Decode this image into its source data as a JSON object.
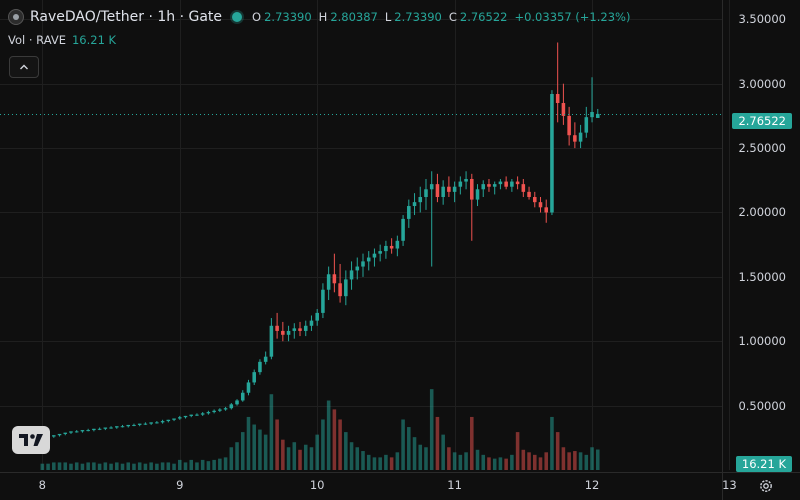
{
  "header": {
    "title": "RaveDAO/Tether · 1h · Gate",
    "ohlc": {
      "o_label": "O",
      "o": "2.73390",
      "h_label": "H",
      "h": "2.80387",
      "l_label": "L",
      "l": "2.73390",
      "c_label": "C",
      "c": "2.76522",
      "change": "+0.03357 (+1.23%)"
    },
    "status_color": "#26a69a"
  },
  "volume_indicator": {
    "label": "Vol · RAVE",
    "value": "16.21 K"
  },
  "price_axis": {
    "labels": [
      "3.50000",
      "3.00000",
      "2.50000",
      "2.00000",
      "1.50000",
      "1.00000",
      "0.50000"
    ]
  },
  "current_price_tag": "2.76522",
  "current_volume_tag": "16.21 K",
  "time_axis": {
    "labels": [
      "8",
      "9",
      "10",
      "11",
      "12",
      "13"
    ]
  },
  "colors": {
    "up": "#26a69a",
    "down": "#ef5350",
    "background": "#0f0f0f",
    "grid": "#1f1f1f"
  },
  "icons": {
    "collapse": "chevron-up-icon",
    "brand": "tradingview-logo",
    "settings": "gear-icon"
  },
  "chart_data": {
    "type": "candlestick",
    "title": "RaveDAO/Tether · 1h · Gate",
    "ylim": [
      0,
      3.65
    ],
    "volume_ylim": [
      0,
      95000
    ],
    "x_range_hours": [
      -6,
      118
    ],
    "x_ticks": [
      "8",
      "9",
      "10",
      "11",
      "12",
      "13"
    ],
    "y_ticks": [
      0.5,
      1.0,
      1.5,
      2.0,
      2.5,
      3.0,
      3.5
    ],
    "grid": true,
    "last_price": 2.76522,
    "last_volume": 16210,
    "candles": [
      [
        0.25,
        0.26,
        0.24,
        0.25,
        5000
      ],
      [
        0.25,
        0.26,
        0.24,
        0.26,
        5000
      ],
      [
        0.26,
        0.27,
        0.25,
        0.27,
        6000
      ],
      [
        0.27,
        0.28,
        0.26,
        0.28,
        6000
      ],
      [
        0.28,
        0.29,
        0.27,
        0.29,
        6000
      ],
      [
        0.29,
        0.3,
        0.28,
        0.3,
        5000
      ],
      [
        0.3,
        0.31,
        0.29,
        0.3,
        6000
      ],
      [
        0.3,
        0.31,
        0.29,
        0.31,
        5000
      ],
      [
        0.31,
        0.32,
        0.3,
        0.31,
        6000
      ],
      [
        0.31,
        0.32,
        0.3,
        0.32,
        6000
      ],
      [
        0.32,
        0.33,
        0.31,
        0.32,
        5000
      ],
      [
        0.32,
        0.33,
        0.31,
        0.33,
        6000
      ],
      [
        0.33,
        0.34,
        0.32,
        0.33,
        5000
      ],
      [
        0.33,
        0.34,
        0.32,
        0.34,
        6000
      ],
      [
        0.34,
        0.35,
        0.33,
        0.34,
        5000
      ],
      [
        0.34,
        0.35,
        0.33,
        0.35,
        6000
      ],
      [
        0.35,
        0.36,
        0.34,
        0.35,
        5000
      ],
      [
        0.35,
        0.36,
        0.34,
        0.36,
        6000
      ],
      [
        0.36,
        0.37,
        0.35,
        0.36,
        5000
      ],
      [
        0.36,
        0.37,
        0.35,
        0.37,
        6000
      ],
      [
        0.37,
        0.38,
        0.36,
        0.37,
        5000
      ],
      [
        0.37,
        0.39,
        0.36,
        0.38,
        6000
      ],
      [
        0.38,
        0.39,
        0.37,
        0.39,
        6000
      ],
      [
        0.39,
        0.4,
        0.38,
        0.4,
        5000
      ],
      [
        0.4,
        0.42,
        0.39,
        0.41,
        8000
      ],
      [
        0.41,
        0.42,
        0.4,
        0.42,
        6000
      ],
      [
        0.42,
        0.43,
        0.41,
        0.43,
        8000
      ],
      [
        0.43,
        0.44,
        0.42,
        0.43,
        6000
      ],
      [
        0.43,
        0.45,
        0.42,
        0.44,
        8000
      ],
      [
        0.44,
        0.46,
        0.43,
        0.45,
        7000
      ],
      [
        0.45,
        0.47,
        0.44,
        0.46,
        8000
      ],
      [
        0.46,
        0.48,
        0.45,
        0.47,
        9000
      ],
      [
        0.47,
        0.49,
        0.46,
        0.48,
        10000
      ],
      [
        0.48,
        0.52,
        0.47,
        0.51,
        18000
      ],
      [
        0.51,
        0.55,
        0.5,
        0.54,
        22000
      ],
      [
        0.54,
        0.62,
        0.53,
        0.6,
        30000
      ],
      [
        0.6,
        0.7,
        0.58,
        0.68,
        42000
      ],
      [
        0.68,
        0.78,
        0.66,
        0.76,
        36000
      ],
      [
        0.76,
        0.86,
        0.74,
        0.84,
        32000
      ],
      [
        0.84,
        0.92,
        0.82,
        0.88,
        28000
      ],
      [
        0.88,
        1.18,
        0.86,
        1.12,
        60000
      ],
      [
        1.12,
        1.22,
        1.02,
        1.08,
        40000
      ],
      [
        1.08,
        1.15,
        1.0,
        1.05,
        24000
      ],
      [
        1.05,
        1.12,
        1.0,
        1.08,
        18000
      ],
      [
        1.08,
        1.14,
        1.02,
        1.1,
        22000
      ],
      [
        1.1,
        1.15,
        1.04,
        1.08,
        16000
      ],
      [
        1.08,
        1.16,
        1.04,
        1.12,
        20000
      ],
      [
        1.12,
        1.2,
        1.08,
        1.16,
        18000
      ],
      [
        1.16,
        1.25,
        1.12,
        1.22,
        28000
      ],
      [
        1.22,
        1.45,
        1.18,
        1.4,
        40000
      ],
      [
        1.4,
        1.58,
        1.32,
        1.52,
        55000
      ],
      [
        1.52,
        1.68,
        1.38,
        1.45,
        48000
      ],
      [
        1.45,
        1.6,
        1.3,
        1.35,
        40000
      ],
      [
        1.35,
        1.55,
        1.28,
        1.48,
        30000
      ],
      [
        1.48,
        1.62,
        1.4,
        1.55,
        22000
      ],
      [
        1.55,
        1.65,
        1.48,
        1.58,
        18000
      ],
      [
        1.58,
        1.68,
        1.5,
        1.62,
        15000
      ],
      [
        1.62,
        1.7,
        1.55,
        1.65,
        12000
      ],
      [
        1.65,
        1.72,
        1.58,
        1.68,
        10000
      ],
      [
        1.68,
        1.75,
        1.62,
        1.7,
        10000
      ],
      [
        1.7,
        1.78,
        1.64,
        1.74,
        12000
      ],
      [
        1.74,
        1.8,
        1.68,
        1.72,
        10000
      ],
      [
        1.72,
        1.82,
        1.66,
        1.78,
        14000
      ],
      [
        1.78,
        1.98,
        1.74,
        1.95,
        40000
      ],
      [
        1.95,
        2.1,
        1.88,
        2.05,
        34000
      ],
      [
        2.05,
        2.15,
        1.98,
        2.08,
        26000
      ],
      [
        2.08,
        2.2,
        2.0,
        2.12,
        20000
      ],
      [
        2.12,
        2.26,
        2.02,
        2.18,
        18000
      ],
      [
        2.18,
        2.32,
        1.58,
        2.22,
        64000
      ],
      [
        2.22,
        2.3,
        2.08,
        2.12,
        42000
      ],
      [
        2.12,
        2.25,
        2.06,
        2.2,
        28000
      ],
      [
        2.2,
        2.28,
        2.12,
        2.16,
        18000
      ],
      [
        2.16,
        2.24,
        2.08,
        2.2,
        14000
      ],
      [
        2.2,
        2.28,
        2.14,
        2.24,
        12000
      ],
      [
        2.24,
        2.32,
        2.18,
        2.26,
        14000
      ],
      [
        2.26,
        2.3,
        1.78,
        2.1,
        42000
      ],
      [
        2.1,
        2.22,
        2.05,
        2.18,
        16000
      ],
      [
        2.18,
        2.25,
        2.12,
        2.22,
        12000
      ],
      [
        2.22,
        2.26,
        2.16,
        2.2,
        10000
      ],
      [
        2.2,
        2.24,
        2.14,
        2.22,
        9000
      ],
      [
        2.22,
        2.26,
        2.18,
        2.24,
        10000
      ],
      [
        2.24,
        2.28,
        2.18,
        2.2,
        9000
      ],
      [
        2.2,
        2.26,
        2.16,
        2.24,
        12000
      ],
      [
        2.24,
        2.28,
        2.18,
        2.22,
        30000
      ],
      [
        2.22,
        2.26,
        2.12,
        2.16,
        16000
      ],
      [
        2.16,
        2.2,
        2.1,
        2.12,
        14000
      ],
      [
        2.12,
        2.16,
        2.04,
        2.08,
        12000
      ],
      [
        2.08,
        2.12,
        2.0,
        2.04,
        10000
      ],
      [
        2.04,
        2.1,
        1.92,
        2.0,
        14000
      ],
      [
        2.0,
        2.95,
        1.98,
        2.92,
        42000
      ],
      [
        2.92,
        3.32,
        2.7,
        2.85,
        30000
      ],
      [
        2.85,
        3.0,
        2.68,
        2.75,
        18000
      ],
      [
        2.75,
        2.82,
        2.52,
        2.6,
        14000
      ],
      [
        2.6,
        2.7,
        2.5,
        2.55,
        15000
      ],
      [
        2.55,
        2.68,
        2.5,
        2.62,
        14000
      ],
      [
        2.62,
        2.82,
        2.58,
        2.74,
        12000
      ],
      [
        2.74,
        3.05,
        2.7,
        2.78,
        18000
      ],
      [
        2.7339,
        2.80387,
        2.7339,
        2.76522,
        16210
      ]
    ]
  }
}
